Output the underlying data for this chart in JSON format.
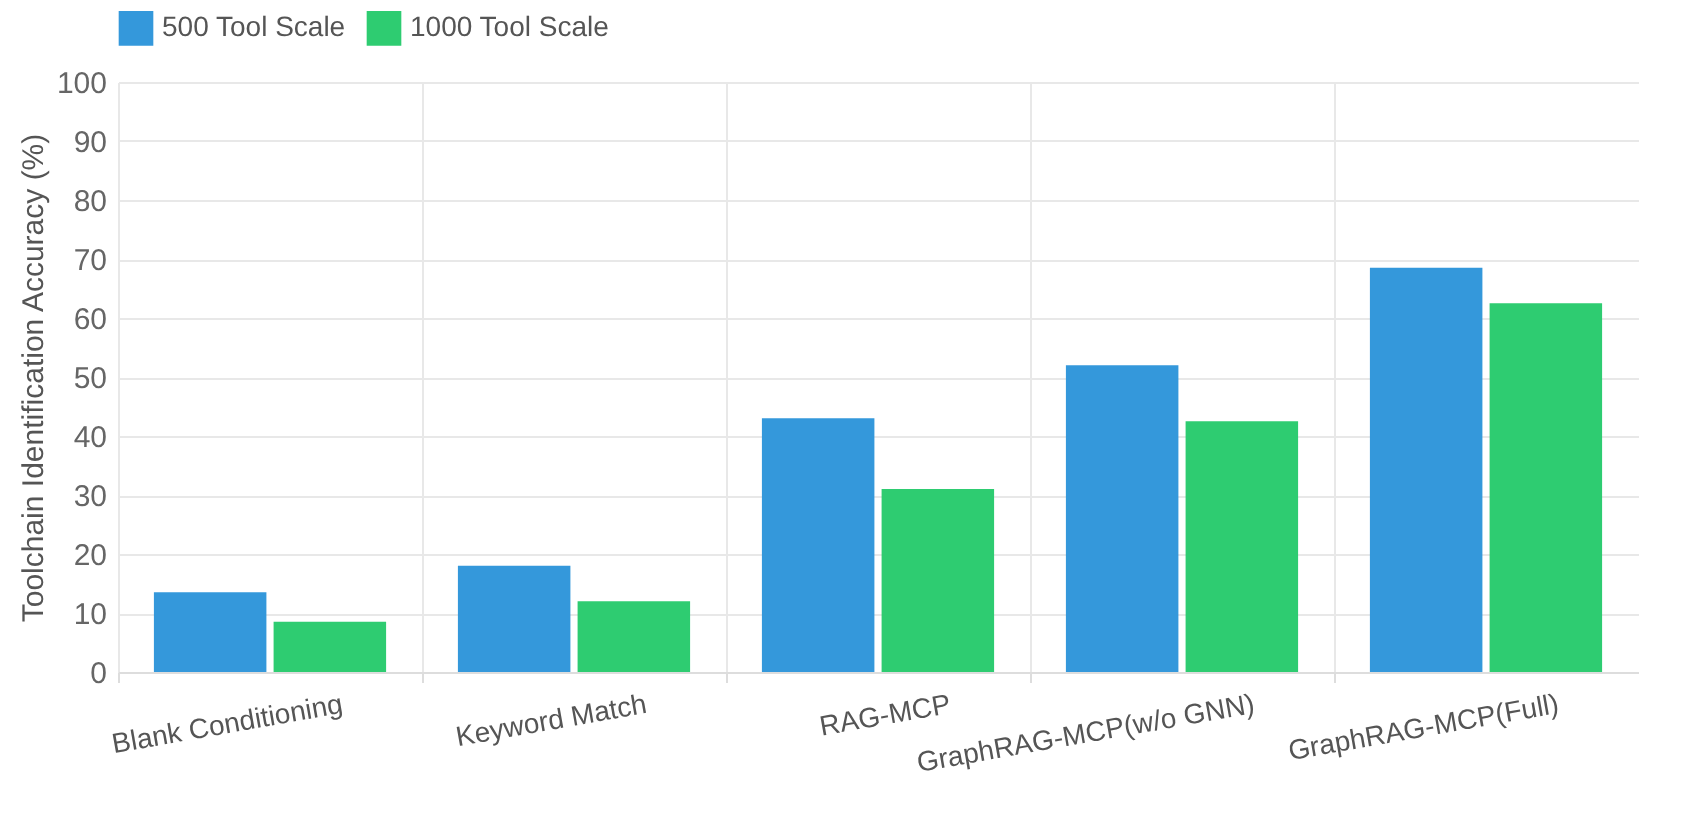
{
  "chart_data": {
    "type": "bar",
    "ylabel": "Toolchain Identification Accuracy (%)",
    "categories": [
      "Blank Conditioning",
      "Keyword Match",
      "RAG-MCP",
      "GraphRAG-MCP(w/o GNN)",
      "GraphRAG-MCP(Full)"
    ],
    "series": [
      {
        "name": "500 Tool Scale",
        "color": "#3498db",
        "values": [
          13.5,
          18,
          43,
          52,
          68.5
        ]
      },
      {
        "name": "1000 Tool Scale",
        "color": "#2ecc71",
        "values": [
          8.5,
          12,
          31,
          42.5,
          62.5
        ]
      }
    ],
    "ylim": [
      0,
      100
    ],
    "yticks": [
      0,
      10,
      20,
      30,
      40,
      50,
      60,
      70,
      80,
      90,
      100
    ],
    "grid": true,
    "legend": "top"
  }
}
